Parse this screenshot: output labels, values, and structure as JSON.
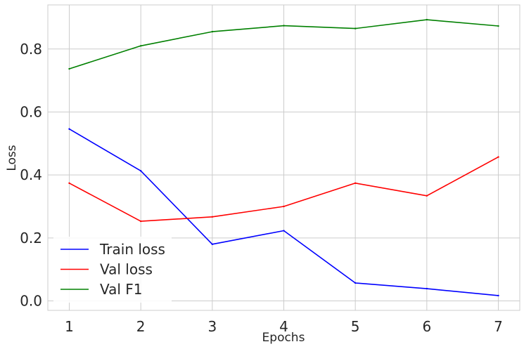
{
  "chart_data": {
    "type": "line",
    "title": "",
    "xlabel": "Epochs",
    "ylabel": "Loss",
    "x": [
      1,
      2,
      3,
      4,
      5,
      6,
      7
    ],
    "xlim": [
      0.7,
      7.3
    ],
    "ylim": [
      -0.03,
      0.94
    ],
    "xticks": [
      1,
      2,
      3,
      4,
      5,
      6,
      7
    ],
    "yticks": [
      0.0,
      0.2,
      0.4,
      0.6,
      0.8
    ],
    "ytick_labels": [
      "0.0",
      "0.2",
      "0.4",
      "0.6",
      "0.8"
    ],
    "grid": true,
    "legend_position": "lower-left",
    "series": [
      {
        "name": "Train loss",
        "color": "#0000ff",
        "values": [
          0.546,
          0.413,
          0.18,
          0.223,
          0.057,
          0.039,
          0.017
        ]
      },
      {
        "name": "Val loss",
        "color": "#ff0000",
        "values": [
          0.374,
          0.253,
          0.267,
          0.3,
          0.374,
          0.334,
          0.457
        ]
      },
      {
        "name": "Val F1",
        "color": "#008000",
        "values": [
          0.737,
          0.81,
          0.855,
          0.874,
          0.865,
          0.893,
          0.873
        ]
      }
    ]
  }
}
